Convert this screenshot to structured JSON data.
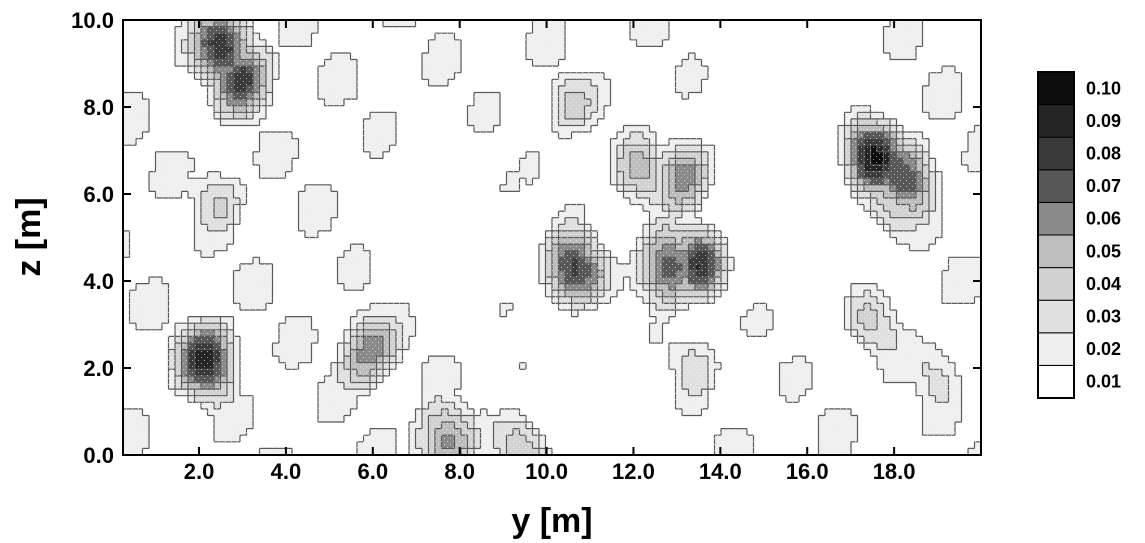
{
  "chart_data": {
    "type": "heatmap",
    "title": "",
    "xlabel": "y  [m]",
    "ylabel": "z [m]",
    "xlim": [
      0.25,
      20.0
    ],
    "ylim": [
      0.0,
      10.0
    ],
    "x_ticks": [
      "2.0",
      "4.0",
      "6.0",
      "8.0",
      "10.0",
      "12.0",
      "14.0",
      "16.0",
      "18.0"
    ],
    "y_ticks": [
      "0.0",
      "2.0",
      "4.0",
      "6.0",
      "8.0",
      "10.0"
    ],
    "grid": false,
    "colorbar": {
      "placement": "right",
      "levels": [
        "0.01",
        "0.02",
        "0.03",
        "0.04",
        "0.05",
        "0.06",
        "0.07",
        "0.08",
        "0.09",
        "0.10"
      ],
      "colors": [
        "#ffffff",
        "#efefef",
        "#e0e0e0",
        "#d2d2d2",
        "#bdbdbd",
        "#8a8a8a",
        "#585858",
        "#3a3a3a",
        "#252525",
        "#0d0d0d"
      ]
    },
    "hotspots": [
      {
        "y": 2.6,
        "z": 9.4,
        "value": 0.09
      },
      {
        "y": 3.0,
        "z": 8.7,
        "value": 0.08
      },
      {
        "y": 2.2,
        "z": 2.2,
        "value": 0.09
      },
      {
        "y": 5.9,
        "z": 2.4,
        "value": 0.07
      },
      {
        "y": 7.6,
        "z": 0.3,
        "value": 0.07
      },
      {
        "y": 9.5,
        "z": 0.3,
        "value": 0.06
      },
      {
        "y": 10.6,
        "z": 4.2,
        "value": 0.09
      },
      {
        "y": 12.8,
        "z": 4.3,
        "value": 0.09
      },
      {
        "y": 13.5,
        "z": 4.4,
        "value": 0.09
      },
      {
        "y": 13.2,
        "z": 6.5,
        "value": 0.07
      },
      {
        "y": 17.5,
        "z": 6.9,
        "value": 0.1
      },
      {
        "y": 18.3,
        "z": 6.4,
        "value": 0.08
      },
      {
        "y": 12.2,
        "z": 6.5,
        "value": 0.05
      },
      {
        "y": 17.9,
        "z": 5.8,
        "value": 0.05
      },
      {
        "y": 2.5,
        "z": 6.0,
        "value": 0.04
      },
      {
        "y": 10.5,
        "z": 8.0,
        "value": 0.04
      },
      {
        "y": 13.4,
        "z": 2.2,
        "value": 0.04
      },
      {
        "y": 17.5,
        "z": 3.0,
        "value": 0.04
      },
      {
        "y": 8.8,
        "z": 6.0,
        "value": 0.035
      },
      {
        "y": 9.2,
        "z": 2.0,
        "value": 0.03
      },
      {
        "y": 15.0,
        "z": 3.2,
        "value": 0.03
      },
      {
        "y": 19.0,
        "z": 2.0,
        "value": 0.035
      }
    ],
    "low_regions": [
      {
        "y": 8.0,
        "z": 5.2
      },
      {
        "y": 11.0,
        "z": 1.5
      },
      {
        "y": 15.5,
        "z": 8.0
      },
      {
        "y": 15.2,
        "z": 4.6
      }
    ]
  }
}
